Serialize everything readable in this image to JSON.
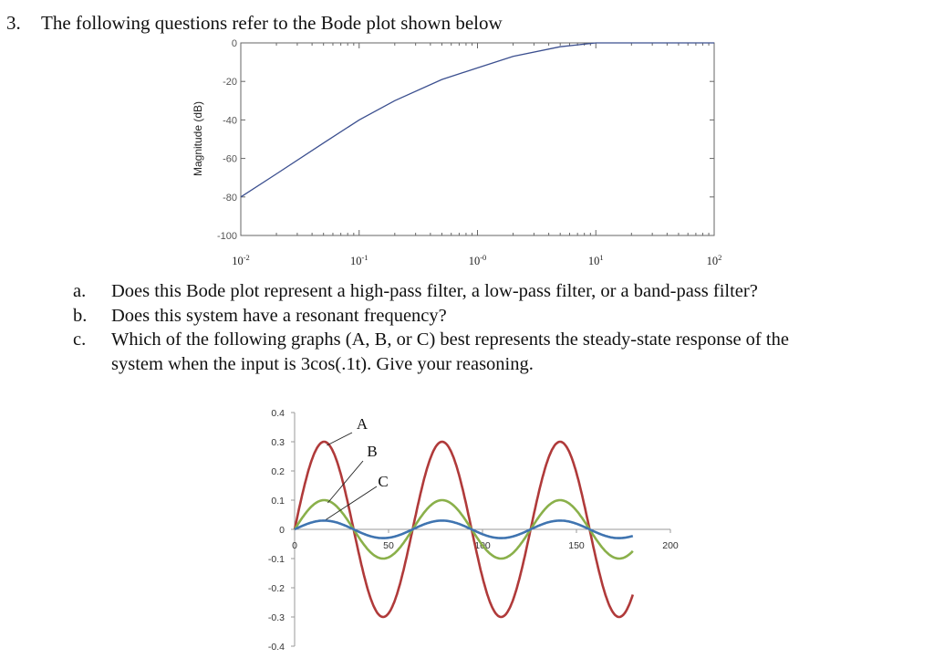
{
  "question": {
    "number": "3.",
    "title": "The following questions refer to the Bode plot shown below"
  },
  "parts": [
    {
      "label": "a.",
      "text": "Does this Bode plot represent a high-pass filter, a low-pass filter, or a band-pass filter?"
    },
    {
      "label": "b.",
      "text": "Does this system have a resonant frequency?"
    },
    {
      "label": "c.",
      "text": "Which of the following graphs (A, B, or C) best represents the steady-state response of the",
      "text2": "system when the input is 3cos(.1t). Give your reasoning."
    }
  ],
  "colors": {
    "bode_line": "#3b4f8f",
    "curve_A": "#b03a3a",
    "curve_B": "#8ab04a",
    "curve_C": "#3f74b0"
  },
  "chart_data": [
    {
      "type": "line",
      "title": "",
      "xlabel": "",
      "ylabel": "Magnitude (dB)",
      "x_scale": "log",
      "xlim": [
        0.01,
        100
      ],
      "ylim": [
        -100,
        0
      ],
      "x_tick_labels": [
        "10-2",
        "10-1",
        "10-0",
        "101",
        "102"
      ],
      "y_ticks": [
        0,
        -20,
        -40,
        -60,
        -80,
        -100
      ],
      "series": [
        {
          "x": [
            0.01,
            0.02,
            0.05,
            0.1,
            0.2,
            0.5,
            1,
            2,
            5,
            10,
            20,
            50,
            100
          ],
          "y": [
            -80,
            -68,
            -52,
            -40,
            -30,
            -19,
            -13,
            -7,
            -2,
            0,
            0,
            0,
            0
          ]
        }
      ]
    },
    {
      "type": "line",
      "title": "",
      "xlim": [
        0,
        200
      ],
      "ylim": [
        -0.4,
        0.4
      ],
      "x_ticks": [
        0,
        50,
        100,
        150,
        200
      ],
      "y_ticks": [
        0.4,
        0.3,
        0.2,
        0.1,
        0,
        -0.1,
        -0.2,
        -0.3,
        -0.4
      ],
      "y_tick_labels": [
        "0.4",
        "0.3",
        "0.2",
        "0.1",
        "0",
        "-0.1",
        "-0.2",
        "-0.3",
        "-0.4"
      ],
      "series": [
        {
          "name": "A",
          "amplitude": 0.3,
          "period": 62.8,
          "x_end": 180
        },
        {
          "name": "B",
          "amplitude": 0.1,
          "period": 62.8,
          "x_end": 180
        },
        {
          "name": "C",
          "amplitude": 0.03,
          "period": 62.8,
          "x_end": 180
        }
      ]
    }
  ]
}
